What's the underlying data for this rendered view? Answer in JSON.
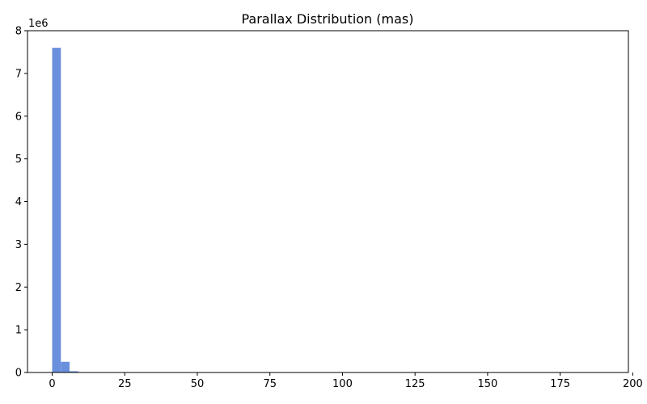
{
  "chart_data": {
    "type": "bar",
    "title": "Parallax Distribution (mas)",
    "xlabel": "",
    "ylabel": "",
    "y_offset_label": "1e6",
    "xlim": [
      -8.5,
      198.5
    ],
    "ylim": [
      0,
      8
    ],
    "x_ticks": [
      0,
      25,
      50,
      75,
      100,
      125,
      150,
      175,
      200
    ],
    "y_ticks": [
      0,
      1,
      2,
      3,
      4,
      5,
      6,
      7,
      8
    ],
    "bin_width": 3.0,
    "bins": [
      {
        "x0": 0,
        "x1": 3,
        "value": 7.6
      },
      {
        "x0": 3,
        "x1": 6,
        "value": 0.25
      },
      {
        "x0": 6,
        "x1": 9,
        "value": 0.03
      },
      {
        "x0": 9,
        "x1": 12,
        "value": 0.008
      }
    ],
    "bar_color": "#6a8fdc",
    "grid": false,
    "legend": "none"
  }
}
